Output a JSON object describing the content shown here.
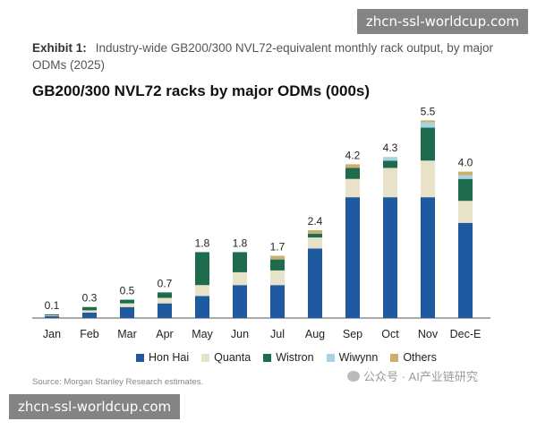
{
  "watermark_top": "zhcn-ssl-worldcup.com",
  "watermark_bottom": "zhcn-ssl-worldcup.com",
  "exhibit_label": "Exhibit 1:",
  "exhibit_text": "Industry-wide GB200/300 NVL72-equivalent monthly rack output, by major ODMs (2025)",
  "source": "Source: Morgan Stanley Research estimates.",
  "wechat_text": "公众号 · AI产业链研究",
  "chart_data": {
    "type": "bar",
    "stacked": true,
    "title": "GB200/300 NVL72 racks by major ODMs (000s)",
    "categories": [
      "Jan",
      "Feb",
      "Mar",
      "Apr",
      "May",
      "Jun",
      "Jul",
      "Aug",
      "Sep",
      "Oct",
      "Nov",
      "Dec-E"
    ],
    "series": [
      {
        "name": "Hon Hai",
        "color": "#1f5aa0",
        "values": [
          0.05,
          0.15,
          0.3,
          0.4,
          0.6,
          0.9,
          0.9,
          1.9,
          3.3,
          3.3,
          3.3,
          2.6
        ]
      },
      {
        "name": "Quanta",
        "color": "#e7e2c8",
        "values": [
          0.02,
          0.06,
          0.1,
          0.15,
          0.3,
          0.35,
          0.4,
          0.3,
          0.5,
          0.8,
          1.0,
          0.6
        ]
      },
      {
        "name": "Wistron",
        "color": "#1f6b4d",
        "values": [
          0.03,
          0.09,
          0.1,
          0.15,
          0.9,
          0.55,
          0.3,
          0.1,
          0.3,
          0.2,
          0.9,
          0.6
        ]
      },
      {
        "name": "Wiwynn",
        "color": "#a8d3e5",
        "values": [
          0,
          0,
          0,
          0,
          0,
          0,
          0,
          0,
          0,
          0.1,
          0.15,
          0.1
        ]
      },
      {
        "name": "Others",
        "color": "#c9b06e",
        "values": [
          0,
          0,
          0,
          0,
          0,
          0,
          0.1,
          0.1,
          0.1,
          0.0,
          0.05,
          0.1
        ]
      }
    ],
    "totals": [
      "0.1",
      "0.3",
      "0.5",
      "0.7",
      "1.8",
      "1.8",
      "1.7",
      "2.4",
      "4.2",
      "4.3",
      "5.5",
      "4.0"
    ],
    "ylim": [
      0,
      5.8
    ],
    "legend_position": "bottom"
  }
}
